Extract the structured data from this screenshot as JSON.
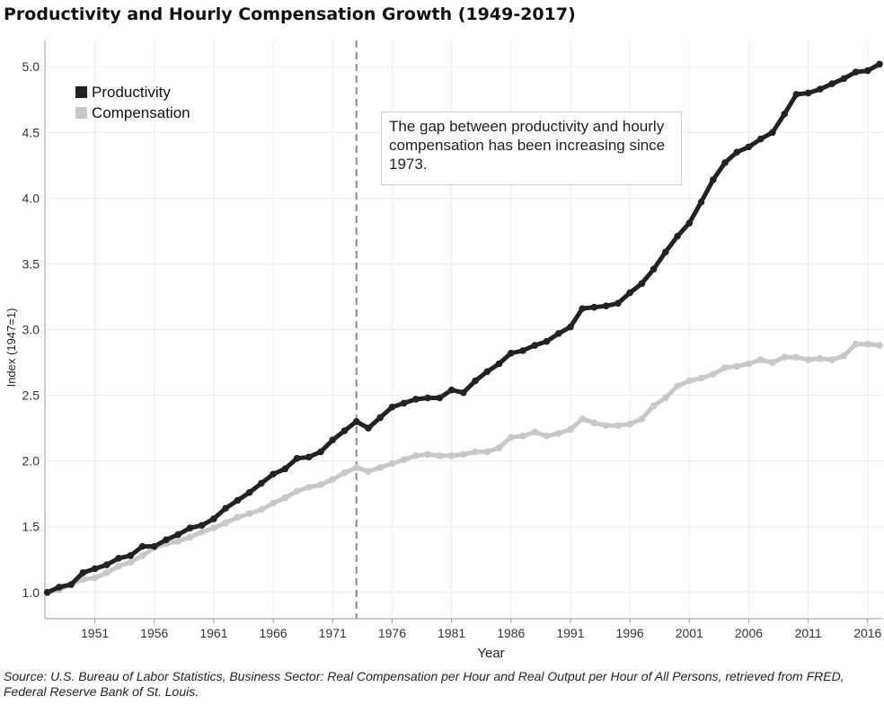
{
  "title": "Productivity and Hourly Compensation Growth (1949-2017)",
  "source": "Source: U.S. Bureau of Labor Statistics, Business Sector: Real Compensation per Hour and Real Output per Hour of All Persons, retrieved from FRED, Federal Reserve Bank of St. Louis.",
  "annotation": "The gap between productivity and hourly compensation has been increasing since 1973.",
  "colors": {
    "productivity": "#222222",
    "compensation": "#c8c8c8",
    "grid": "#ececec",
    "refline": "#8a8a8a"
  },
  "chart_data": {
    "type": "line",
    "xlabel": "Year",
    "ylabel": "Index (1947=1)",
    "xlim": [
      1946.8,
      2017.3
    ],
    "ylim": [
      0.8,
      5.2
    ],
    "x_ticks": [
      1951,
      1956,
      1961,
      1966,
      1971,
      1976,
      1981,
      1986,
      1991,
      1996,
      2001,
      2006,
      2011,
      2016
    ],
    "y_ticks": [
      1.0,
      1.5,
      2.0,
      2.5,
      3.0,
      3.5,
      4.0,
      4.5,
      5.0
    ],
    "y_tick_labels": [
      "1.0",
      "1.5",
      "2.0",
      "2.5",
      "3.0",
      "3.5",
      "4.0",
      "4.5",
      "5.0"
    ],
    "grid": true,
    "legend_position": "top-left",
    "reference_line_x": 1973,
    "x": [
      1947,
      1948,
      1949,
      1950,
      1951,
      1952,
      1953,
      1954,
      1955,
      1956,
      1957,
      1958,
      1959,
      1960,
      1961,
      1962,
      1963,
      1964,
      1965,
      1966,
      1967,
      1968,
      1969,
      1970,
      1971,
      1972,
      1973,
      1974,
      1975,
      1976,
      1977,
      1978,
      1979,
      1980,
      1981,
      1982,
      1983,
      1984,
      1985,
      1986,
      1987,
      1988,
      1989,
      1990,
      1991,
      1992,
      1993,
      1994,
      1995,
      1996,
      1997,
      1998,
      1999,
      2000,
      2001,
      2002,
      2003,
      2004,
      2005,
      2006,
      2007,
      2008,
      2009,
      2010,
      2011,
      2012,
      2013,
      2014,
      2015,
      2016,
      2017
    ],
    "series": [
      {
        "name": "Productivity",
        "values": [
          1.0,
          1.04,
          1.06,
          1.15,
          1.18,
          1.21,
          1.26,
          1.28,
          1.35,
          1.35,
          1.4,
          1.44,
          1.49,
          1.51,
          1.56,
          1.64,
          1.7,
          1.76,
          1.83,
          1.9,
          1.94,
          2.02,
          2.03,
          2.07,
          2.16,
          2.23,
          2.3,
          2.25,
          2.33,
          2.41,
          2.44,
          2.47,
          2.48,
          2.48,
          2.54,
          2.52,
          2.61,
          2.68,
          2.74,
          2.82,
          2.84,
          2.88,
          2.91,
          2.97,
          3.02,
          3.16,
          3.17,
          3.18,
          3.2,
          3.28,
          3.35,
          3.46,
          3.59,
          3.71,
          3.81,
          3.97,
          4.14,
          4.27,
          4.35,
          4.39,
          4.45,
          4.5,
          4.64,
          4.79,
          4.8,
          4.83,
          4.87,
          4.91,
          4.96,
          4.97,
          5.02
        ]
      },
      {
        "name": "Compensation",
        "values": [
          1.0,
          1.02,
          1.06,
          1.1,
          1.11,
          1.15,
          1.2,
          1.23,
          1.28,
          1.34,
          1.37,
          1.39,
          1.42,
          1.46,
          1.49,
          1.53,
          1.57,
          1.6,
          1.63,
          1.68,
          1.72,
          1.77,
          1.8,
          1.82,
          1.86,
          1.91,
          1.95,
          1.92,
          1.95,
          1.98,
          2.01,
          2.04,
          2.05,
          2.04,
          2.04,
          2.05,
          2.07,
          2.07,
          2.1,
          2.18,
          2.19,
          2.22,
          2.19,
          2.21,
          2.24,
          2.32,
          2.29,
          2.27,
          2.27,
          2.28,
          2.32,
          2.42,
          2.48,
          2.57,
          2.61,
          2.63,
          2.66,
          2.71,
          2.72,
          2.74,
          2.77,
          2.75,
          2.79,
          2.79,
          2.77,
          2.78,
          2.77,
          2.8,
          2.89,
          2.89,
          2.88
        ]
      }
    ]
  }
}
